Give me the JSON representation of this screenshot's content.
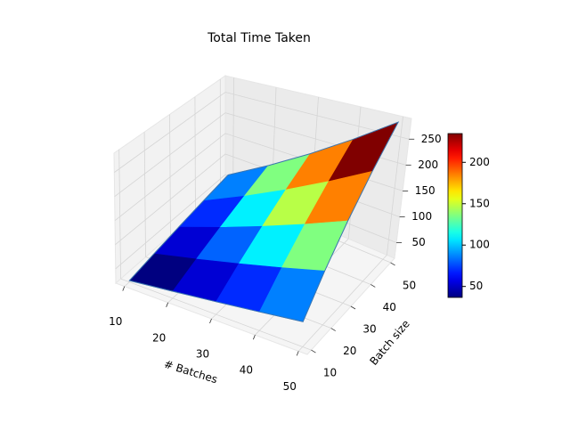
{
  "chart_data": {
    "type": "surface",
    "title": "Total Time Taken",
    "x_label": "# Batches",
    "y_label": "Batch size",
    "x": [
      10,
      20,
      30,
      40,
      50
    ],
    "y": [
      10,
      20,
      30,
      40,
      50
    ],
    "z": [
      [
        23,
        34,
        45,
        56,
        67
      ],
      [
        34,
        56,
        78,
        100,
        122
      ],
      [
        45,
        78,
        111,
        144,
        177
      ],
      [
        56,
        100,
        144,
        188,
        232
      ],
      [
        67,
        122,
        177,
        232,
        287
      ]
    ],
    "xlim": [
      8,
      52
    ],
    "ylim": [
      8,
      52
    ],
    "zlim": [
      20,
      290
    ],
    "xticks": [
      10,
      20,
      30,
      40,
      50
    ],
    "yticks": [
      10,
      20,
      30,
      40,
      50
    ],
    "zticks": [
      50,
      100,
      150,
      200,
      250
    ],
    "colormap": "jet",
    "clim": [
      36.75,
      234.75
    ],
    "cticks": [
      50,
      100,
      150,
      200
    ],
    "grid": true,
    "colorbar": true,
    "edge_color": "#3b75af"
  }
}
